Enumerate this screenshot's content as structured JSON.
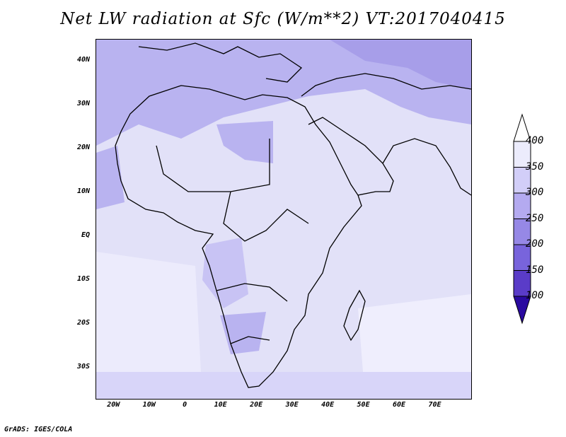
{
  "title": "Net LW radiation at Sfc (W/m**2) VT:2017040415",
  "footer": "GrADS: IGES/COLA",
  "map": {
    "lon_range": [
      -25,
      80
    ],
    "lat_range": [
      -37,
      45
    ],
    "y_ticks": [
      {
        "lat": 40,
        "label": "40N"
      },
      {
        "lat": 30,
        "label": "30N"
      },
      {
        "lat": 20,
        "label": "20N"
      },
      {
        "lat": 10,
        "label": "10N"
      },
      {
        "lat": 0,
        "label": "EQ"
      },
      {
        "lat": -10,
        "label": "10S"
      },
      {
        "lat": -20,
        "label": "20S"
      },
      {
        "lat": -30,
        "label": "30S"
      }
    ],
    "x_ticks": [
      {
        "lon": -20,
        "label": "20W"
      },
      {
        "lon": -10,
        "label": "10W"
      },
      {
        "lon": 0,
        "label": "0"
      },
      {
        "lon": 10,
        "label": "10E"
      },
      {
        "lon": 20,
        "label": "20E"
      },
      {
        "lon": 30,
        "label": "30E"
      },
      {
        "lon": 40,
        "label": "40E"
      },
      {
        "lon": 50,
        "label": "50E"
      },
      {
        "lon": 60,
        "label": "60E"
      },
      {
        "lon": 70,
        "label": "70E"
      }
    ]
  },
  "colorbar": {
    "levels": [
      100,
      150,
      200,
      250,
      300,
      350,
      400
    ],
    "level_labels": [
      "100",
      "150",
      "200",
      "250",
      "300",
      "350",
      "400"
    ],
    "colors": [
      "#3c14b4",
      "#5a3cc8",
      "#7864dc",
      "#9688e6",
      "#b4aaf0",
      "#d2cef8",
      "#ececfc"
    ],
    "low_color": "#2a0aa0",
    "high_color": "#ffffff"
  }
}
